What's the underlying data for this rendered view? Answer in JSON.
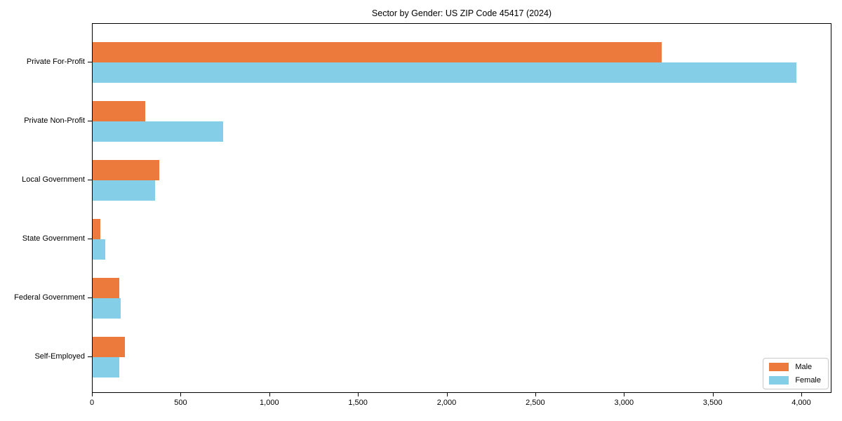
{
  "chart_data": {
    "type": "bar",
    "orientation": "horizontal",
    "title": "Sector by Gender: US ZIP Code 45417 (2024)",
    "xlabel": "",
    "ylabel": "",
    "grid": false,
    "categories": [
      "Private For-Profit",
      "Private Non-Profit",
      "Local Government",
      "State Government",
      "Federal Government",
      "Self-Employed"
    ],
    "series": [
      {
        "name": "Male",
        "color": "#ec7a3d",
        "values": [
          3210,
          295,
          375,
          42,
          150,
          180
        ]
      },
      {
        "name": "Female",
        "color": "#85cee7",
        "values": [
          3970,
          735,
          350,
          70,
          158,
          152
        ]
      }
    ],
    "xlim": [
      0,
      4170
    ],
    "x_ticks": {
      "values": [
        0,
        500,
        1000,
        1500,
        2000,
        2500,
        3000,
        3500,
        4000
      ],
      "labels": [
        "0",
        "500",
        "1,000",
        "1,500",
        "2,000",
        "2,500",
        "3,000",
        "3,500",
        "4,000"
      ]
    },
    "legend_position": "lower right"
  },
  "legend": {
    "entries": [
      {
        "label": "Male",
        "color": "#ec7a3d"
      },
      {
        "label": "Female",
        "color": "#85cee7"
      }
    ]
  }
}
